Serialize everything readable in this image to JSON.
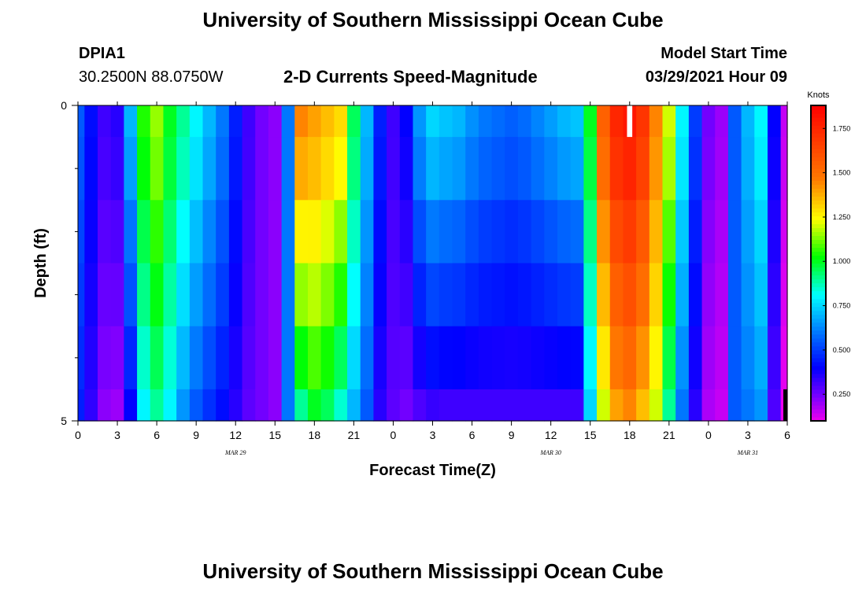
{
  "title_top": "University of Southern Mississippi Ocean Cube",
  "title_bottom": "University of Southern Mississippi Ocean Cube",
  "station": {
    "id": "DPIA1",
    "coords": "30.2500N  88.0750W"
  },
  "model": {
    "label": "Model Start Time",
    "value": "03/29/2021 Hour 09"
  },
  "chart_data": {
    "type": "heatmap",
    "title": "2-D Currents Speed-Magnitude",
    "xlabel": "Forecast Time(Z)",
    "ylabel": "Depth (ft)",
    "x_hours": [
      0,
      1,
      2,
      3,
      4,
      5,
      6,
      7,
      8,
      9,
      10,
      11,
      12,
      13,
      14,
      15,
      16,
      17,
      18,
      19,
      20,
      21,
      22,
      23,
      24,
      25,
      26,
      27,
      28,
      29,
      30,
      31,
      32,
      33,
      34,
      35,
      36,
      37,
      38,
      39,
      40,
      41,
      42,
      43,
      44,
      45,
      46,
      47,
      48,
      49,
      50,
      51,
      52,
      53,
      54
    ],
    "xlim": [
      0,
      54
    ],
    "x_ticks": [
      {
        "h": 0,
        "label": "0"
      },
      {
        "h": 3,
        "label": "3"
      },
      {
        "h": 6,
        "label": "6"
      },
      {
        "h": 9,
        "label": "9"
      },
      {
        "h": 12,
        "label": "12"
      },
      {
        "h": 15,
        "label": "15"
      },
      {
        "h": 18,
        "label": "18"
      },
      {
        "h": 21,
        "label": "21"
      },
      {
        "h": 24,
        "label": "0"
      },
      {
        "h": 27,
        "label": "3"
      },
      {
        "h": 30,
        "label": "6"
      },
      {
        "h": 33,
        "label": "9"
      },
      {
        "h": 36,
        "label": "12"
      },
      {
        "h": 39,
        "label": "15"
      },
      {
        "h": 42,
        "label": "18"
      },
      {
        "h": 45,
        "label": "21"
      },
      {
        "h": 48,
        "label": "0"
      },
      {
        "h": 51,
        "label": "3"
      },
      {
        "h": 54,
        "label": "6"
      }
    ],
    "date_labels": [
      {
        "h": 12,
        "label": "MAR 29"
      },
      {
        "h": 36,
        "label": "MAR 30"
      },
      {
        "h": 51,
        "label": "MAR 31"
      }
    ],
    "ylim": [
      0,
      5
    ],
    "y_ticks": [
      {
        "v": 0,
        "label": "0"
      },
      {
        "v": 5,
        "label": "5"
      }
    ],
    "y_minor": [
      1,
      2,
      3,
      4
    ],
    "depth_layers": [
      0,
      0.5,
      1.5,
      2.5,
      3.5,
      4.5,
      5
    ],
    "colorbar": {
      "unit": "Knots",
      "range": [
        0.1,
        1.88
      ],
      "ticks": [
        0.25,
        0.5,
        0.75,
        1.0,
        1.25,
        1.5,
        1.75
      ],
      "tick_labels": [
        "0.250",
        "0.500",
        "0.750",
        "1.000",
        "1.250",
        "1.500",
        "1.750"
      ]
    },
    "speed_surface": [
      0.55,
      0.42,
      0.32,
      0.35,
      0.7,
      1.05,
      1.15,
      1.0,
      0.9,
      0.8,
      0.7,
      0.6,
      0.45,
      0.32,
      0.25,
      0.22,
      0.6,
      1.45,
      1.4,
      1.35,
      1.3,
      0.95,
      0.7,
      0.45,
      0.32,
      0.4,
      0.65,
      0.75,
      0.72,
      0.7,
      0.64,
      0.6,
      0.58,
      0.56,
      0.58,
      0.62,
      0.66,
      0.7,
      0.72,
      1.0,
      1.55,
      1.75,
      1.8,
      1.7,
      1.45,
      1.2,
      0.8,
      0.5,
      0.25,
      0.2,
      0.55,
      0.7,
      0.8,
      0.4,
      0.15
    ],
    "speed_bottom": [
      0.45,
      0.34,
      0.22,
      0.2,
      0.4,
      0.8,
      0.9,
      0.8,
      0.65,
      0.55,
      0.48,
      0.42,
      0.35,
      0.28,
      0.25,
      0.22,
      0.6,
      0.9,
      1.0,
      0.95,
      0.85,
      0.7,
      0.55,
      0.35,
      0.28,
      0.25,
      0.3,
      0.33,
      0.32,
      0.32,
      0.32,
      0.32,
      0.32,
      0.32,
      0.32,
      0.32,
      0.32,
      0.32,
      0.32,
      0.75,
      1.2,
      1.4,
      1.45,
      1.35,
      1.2,
      0.9,
      0.6,
      0.35,
      0.18,
      0.15,
      0.55,
      0.6,
      0.65,
      0.3,
      0.1
    ],
    "layer_weights": [
      0.0,
      0.12,
      0.35,
      0.55,
      0.78,
      1.0
    ],
    "missing": [
      {
        "h": 42,
        "depth_from": 0,
        "depth_to": 0.5
      }
    ],
    "bottom_black_bands": [
      {
        "h_from": 53.7,
        "h_to": 54,
        "depth_from": 4.5,
        "depth_to": 5
      }
    ]
  },
  "colors": {
    "missing": "#ffffff",
    "land": "#000000"
  }
}
